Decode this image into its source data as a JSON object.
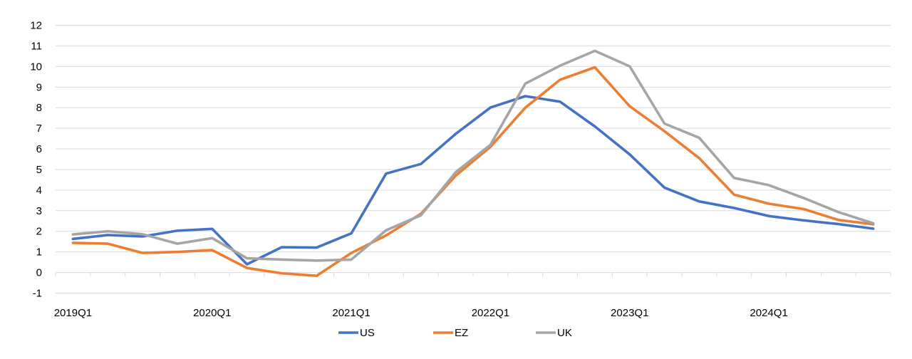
{
  "chart_data": {
    "type": "line",
    "title": "",
    "xlabel": "",
    "ylabel": "",
    "ylim": [
      -1,
      12
    ],
    "y_ticks": [
      -1,
      0,
      1,
      2,
      3,
      4,
      5,
      6,
      7,
      8,
      9,
      10,
      11,
      12
    ],
    "grid": "horizontal",
    "legend_position": "bottom",
    "categories": [
      "2019Q1",
      "2019Q2",
      "2019Q3",
      "2019Q4",
      "2020Q1",
      "2020Q2",
      "2020Q3",
      "2020Q4",
      "2021Q1",
      "2021Q2",
      "2021Q3",
      "2021Q4",
      "2022Q1",
      "2022Q2",
      "2022Q3",
      "2022Q4",
      "2023Q1",
      "2023Q2",
      "2023Q3",
      "2023Q4",
      "2024Q1",
      "2024Q2",
      "2024Q3",
      "2024Q4"
    ],
    "x_tick_labels": [
      "2019Q1",
      "2020Q1",
      "2021Q1",
      "2022Q1",
      "2023Q1",
      "2024Q1"
    ],
    "series": [
      {
        "name": "US",
        "color": "#4472C4",
        "values": [
          1.63,
          1.82,
          1.75,
          2.03,
          2.12,
          0.4,
          1.23,
          1.21,
          1.9,
          4.8,
          5.27,
          6.73,
          8.01,
          8.56,
          8.29,
          7.09,
          5.73,
          4.12,
          3.45,
          3.13,
          2.74,
          2.53,
          2.35,
          2.13
        ]
      },
      {
        "name": "EZ",
        "color": "#ED7D31",
        "values": [
          1.44,
          1.4,
          0.95,
          1.0,
          1.09,
          0.22,
          -0.04,
          -0.16,
          0.95,
          1.8,
          2.85,
          4.7,
          6.1,
          8.0,
          9.36,
          9.96,
          8.07,
          6.86,
          5.55,
          3.78,
          3.34,
          3.08,
          2.55,
          2.34
        ]
      },
      {
        "name": "UK",
        "color": "#A5A5A5",
        "values": [
          1.85,
          2.0,
          1.86,
          1.4,
          1.67,
          0.69,
          0.63,
          0.58,
          0.63,
          2.05,
          2.78,
          4.87,
          6.2,
          9.17,
          10.04,
          10.76,
          10.01,
          7.23,
          6.54,
          4.59,
          4.24,
          3.62,
          2.93,
          2.39
        ]
      }
    ]
  }
}
